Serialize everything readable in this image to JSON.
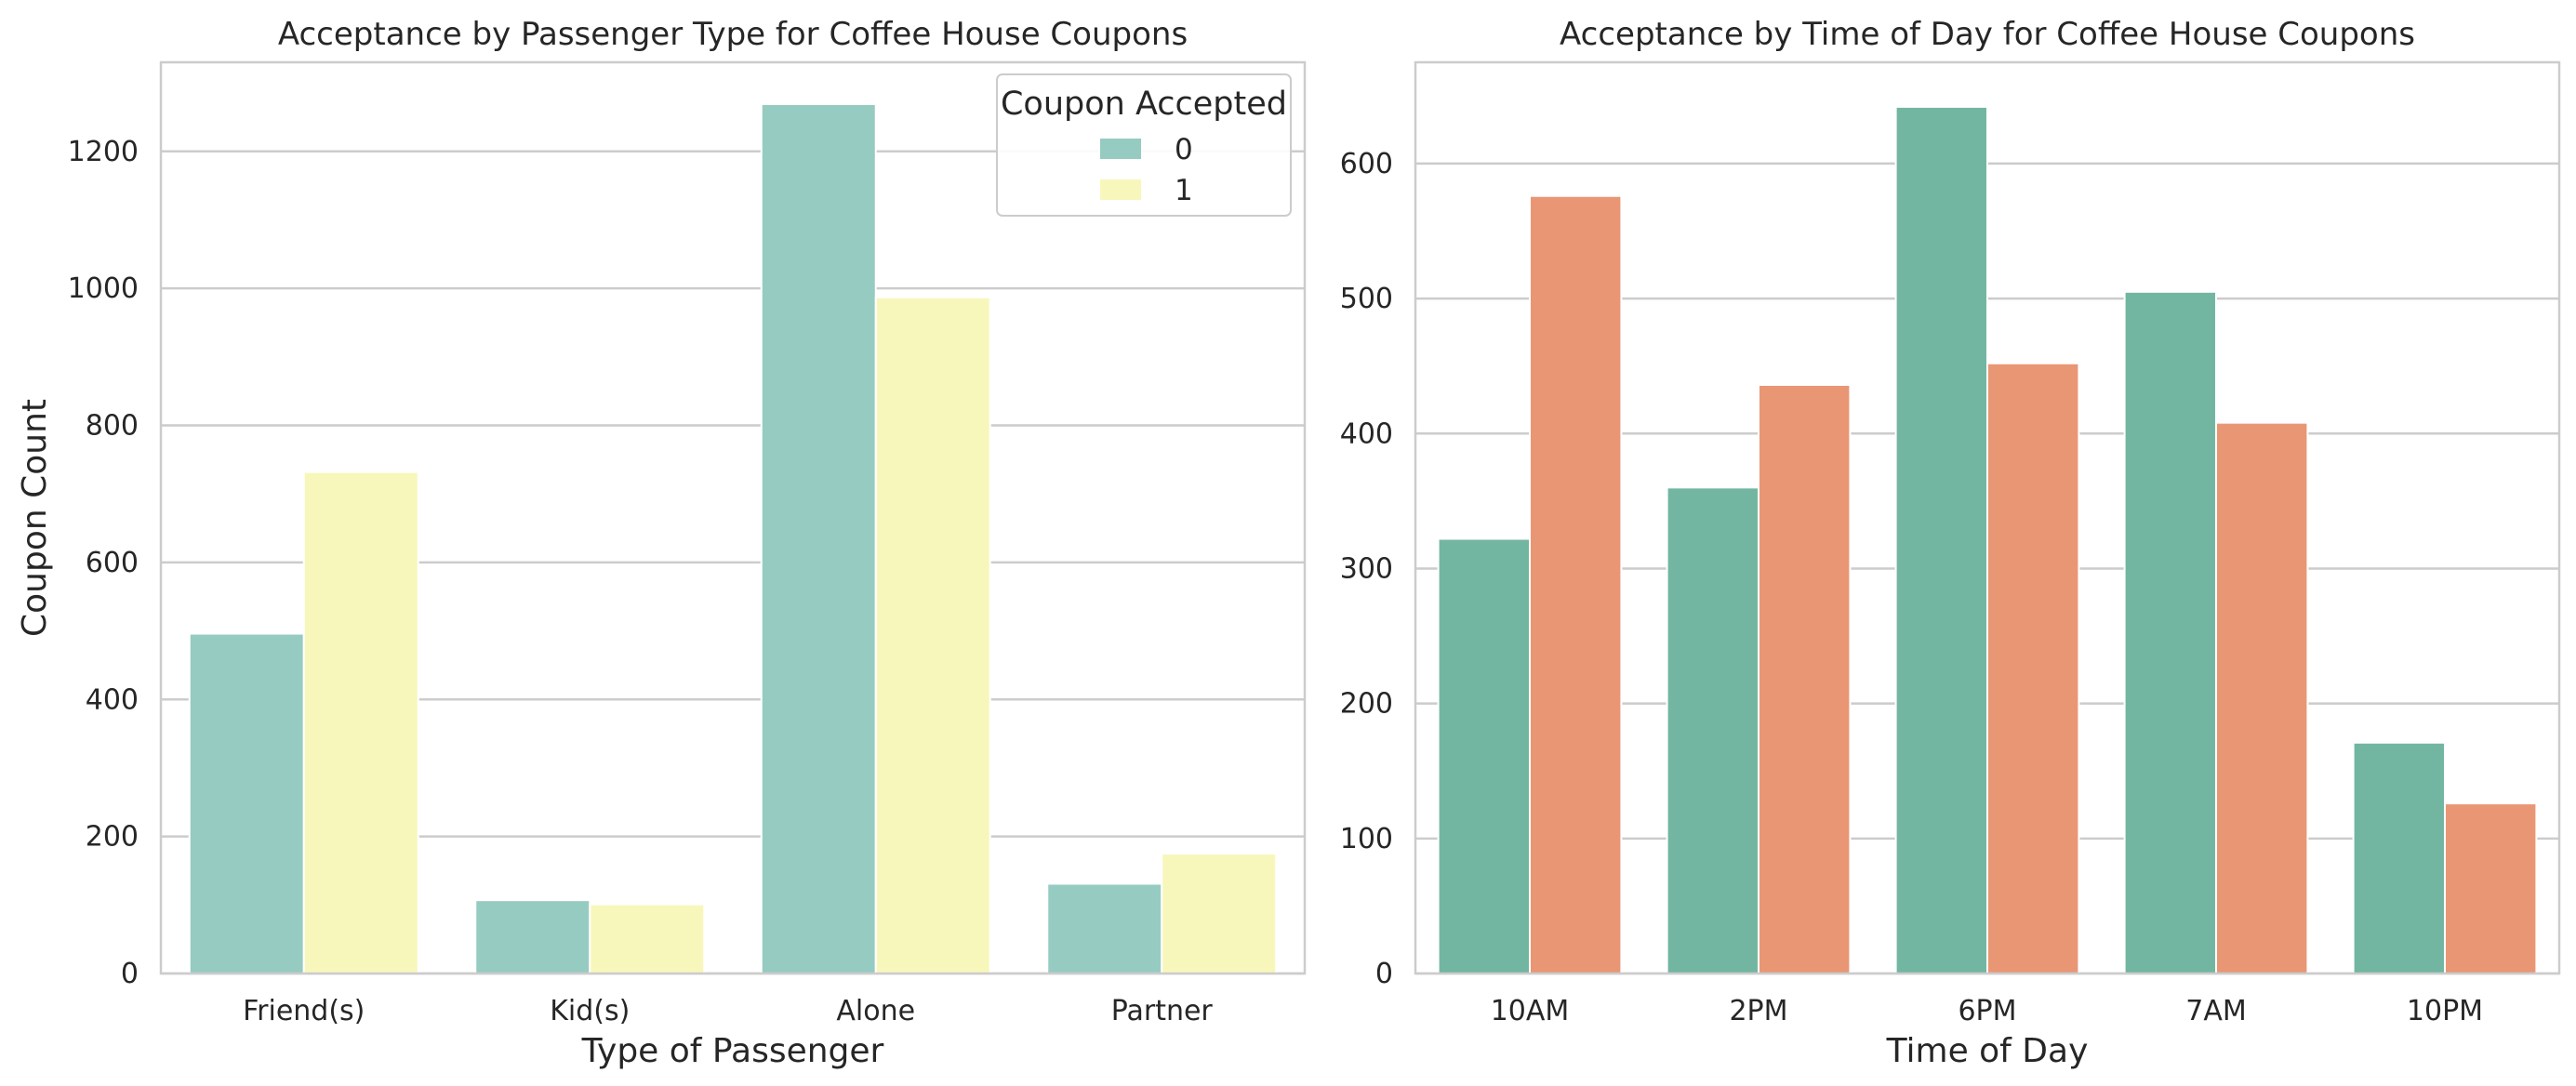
{
  "chart_data": [
    {
      "type": "bar",
      "title": "Acceptance by Passenger Type for Coffee House Coupons",
      "xlabel": "Type of Passenger",
      "ylabel": "Coupon Count",
      "categories": [
        "Friend(s)",
        "Kid(s)",
        "Alone",
        "Partner"
      ],
      "ylim": [
        0,
        1330
      ],
      "yticks": [
        0,
        200,
        400,
        600,
        800,
        1000,
        1200
      ],
      "grid": true,
      "legend": {
        "title": "Coupon Accepted",
        "placement": "top-right"
      },
      "series": [
        {
          "name": "0",
          "color": "#96cbc1",
          "values": [
            496,
            107,
            1269,
            131
          ]
        },
        {
          "name": "1",
          "color": "#f8f7bb",
          "values": [
            732,
            101,
            987,
            175
          ]
        }
      ]
    },
    {
      "type": "bar",
      "title": "Acceptance by Time of Day for Coffee House Coupons",
      "xlabel": "Time of Day",
      "ylabel": "",
      "categories": [
        "10AM",
        "2PM",
        "6PM",
        "7AM",
        "10PM"
      ],
      "ylim": [
        0,
        675
      ],
      "yticks": [
        0,
        100,
        200,
        300,
        400,
        500,
        600
      ],
      "grid": true,
      "legend": null,
      "series": [
        {
          "color": "#72b6a1",
          "values": [
            322,
            360,
            642,
            505,
            171
          ]
        },
        {
          "color": "#e99675",
          "values": [
            576,
            436,
            452,
            408,
            126
          ]
        }
      ]
    }
  ]
}
